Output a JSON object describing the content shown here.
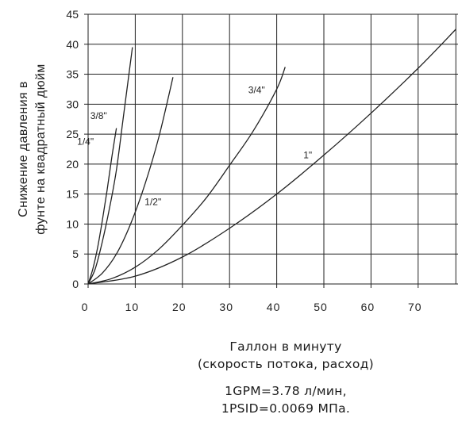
{
  "chart_data": {
    "type": "line",
    "xlabel": [
      "Галлон в минуту",
      "(скорость потока, расход)"
    ],
    "ylabel": [
      "Снижение давления в",
      "фунте на квадратный дюйм"
    ],
    "xlim": [
      0,
      78
    ],
    "ylim": [
      0,
      45
    ],
    "x_ticks": [
      0,
      10,
      20,
      30,
      40,
      50,
      60,
      70
    ],
    "y_ticks": [
      0,
      5,
      10,
      15,
      20,
      25,
      30,
      35,
      40,
      45
    ],
    "grid": true,
    "legend": "none",
    "line_color": "#222222",
    "series": [
      {
        "name": "1/4\"",
        "x": [
          0,
          1,
          2,
          3,
          4,
          5,
          6
        ],
        "y": [
          0,
          2.5,
          6.0,
          10.5,
          15.5,
          21.0,
          26.0
        ]
      },
      {
        "name": "3/8\"",
        "x": [
          0,
          1.5,
          3,
          4.5,
          6,
          7.5,
          9.4
        ],
        "y": [
          0,
          2.5,
          7.0,
          12.5,
          19.0,
          28.0,
          39.5
        ]
      },
      {
        "name": "1/2\"",
        "x": [
          0,
          3,
          6,
          9,
          12,
          15,
          18
        ],
        "y": [
          0,
          1.8,
          5.0,
          10.0,
          16.5,
          24.5,
          34.5
        ]
      },
      {
        "name": "3/4\"",
        "x": [
          0,
          5,
          10,
          15,
          20,
          25,
          30,
          35,
          40,
          41.8
        ],
        "y": [
          0,
          0.9,
          2.8,
          5.8,
          9.8,
          14.3,
          19.8,
          25.5,
          32.5,
          36.2
        ]
      },
      {
        "name": "1\"",
        "x": [
          0,
          10,
          20,
          30,
          40,
          50,
          60,
          70,
          78
        ],
        "y": [
          0,
          1.3,
          4.5,
          9.3,
          15.0,
          21.5,
          28.5,
          36.0,
          42.5
        ]
      }
    ],
    "annotations": [
      "1GPM=3.78 л/мин,",
      "1PSID=0.0069 МПа."
    ]
  }
}
